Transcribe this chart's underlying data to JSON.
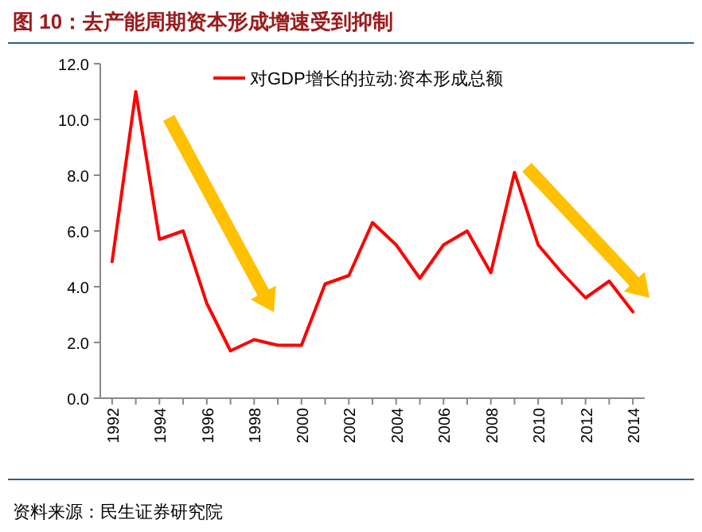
{
  "chart_data": {
    "type": "line",
    "title": "图 10：去产能周期资本形成增速受到抑制",
    "categories": [
      "1992",
      null,
      "1994",
      null,
      "1996",
      null,
      "1998",
      null,
      "2000",
      null,
      "2002",
      null,
      "2004",
      null,
      "2006",
      null,
      "2008",
      null,
      "2010",
      null,
      "2012",
      null,
      "2014"
    ],
    "series": [
      {
        "name": "对GDP增长的拉动:资本形成总额",
        "color": "#ff0000",
        "values": [
          4.9,
          11.0,
          5.7,
          6.0,
          3.4,
          1.7,
          2.1,
          1.9,
          1.9,
          4.1,
          4.4,
          6.3,
          5.5,
          4.3,
          5.5,
          6.0,
          4.5,
          8.1,
          5.5,
          4.5,
          3.6,
          4.2,
          3.1
        ]
      }
    ],
    "ylim": [
      0,
      12
    ],
    "yticks": [
      {
        "value": 0,
        "label": "0.0"
      },
      {
        "value": 2,
        "label": "2.0"
      },
      {
        "value": 4,
        "label": "4.0"
      },
      {
        "value": 6,
        "label": "6.0"
      },
      {
        "value": 8,
        "label": "8.0"
      },
      {
        "value": 10,
        "label": "10.0"
      },
      {
        "value": 12,
        "label": "12.0"
      }
    ],
    "legend": "top",
    "annotations": [
      "资料来源：民生证券研究院"
    ]
  }
}
